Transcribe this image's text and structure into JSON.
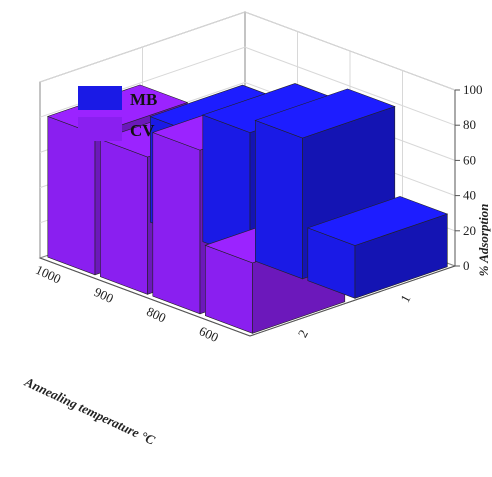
{
  "chart_data": {
    "type": "bar",
    "subtype": "3d-bar",
    "zlabel": "% Adsorption",
    "zlim": [
      0,
      100
    ],
    "zticks": [
      "0",
      "20",
      "40",
      "60",
      "80",
      "100"
    ],
    "temperature_label": "Annealing temperature °C",
    "temperatures": [
      "1000",
      "900",
      "800",
      "600"
    ],
    "series_axis_ticks": [
      "1",
      "2"
    ],
    "series": [
      {
        "name": "MB",
        "color": "#1a1ae6",
        "values": [
          60,
          72,
          80,
          30
        ]
      },
      {
        "name": "CV",
        "color": "#8a1ff0",
        "values": [
          80,
          78,
          93,
          40
        ]
      }
    ],
    "legend": "top-left",
    "grid": true
  }
}
